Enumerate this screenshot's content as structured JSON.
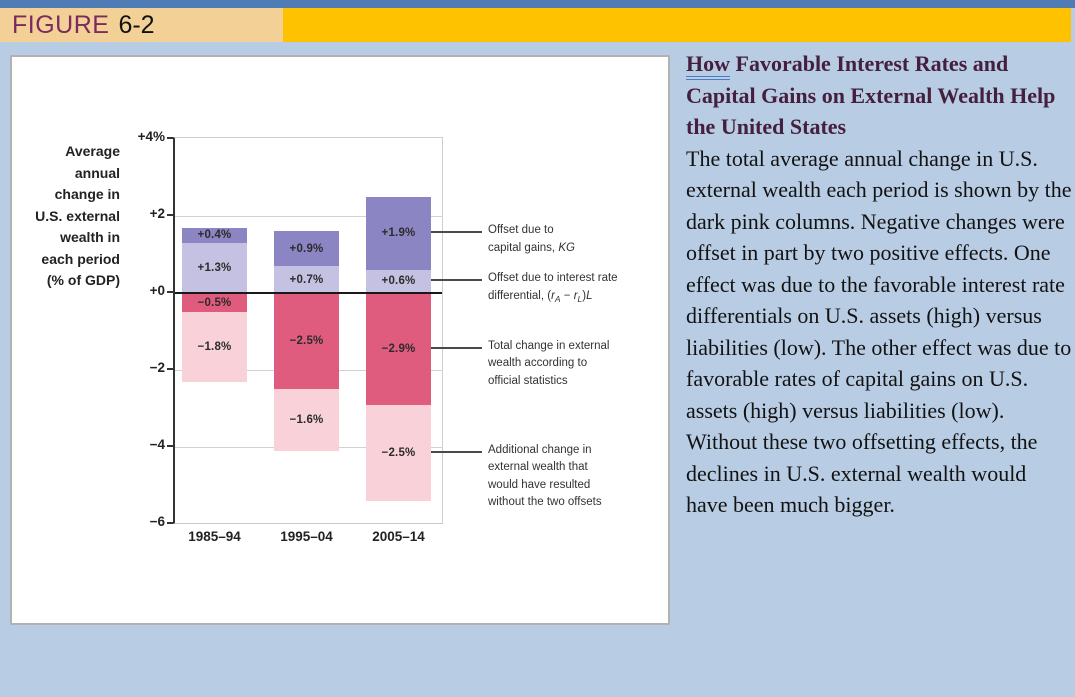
{
  "header": {
    "label": "FIGURE",
    "number": "6-2"
  },
  "colors": {
    "page_bg": "#b8cce4",
    "top_strip": "#4f7cb5",
    "band_tan": "#f2d096",
    "band_gold": "#ffc200",
    "figure_label_text": "#7c2b5e",
    "panel_border": "#b2b2b2",
    "caption_heading": "#44203e",
    "grid_line": "#d2d2d2",
    "zero_line": "#191919"
  },
  "chart_data": {
    "type": "bar",
    "stacked": true,
    "grid": true,
    "ylim": [
      -6,
      4
    ],
    "ylabel_lines": [
      "Average",
      "annual",
      "change in",
      "U.S. external",
      "wealth in",
      "each period",
      "(% of GDP)"
    ],
    "y_ticks": [
      {
        "label": "+4%",
        "value": 4
      },
      {
        "label": "+2",
        "value": 2
      },
      {
        "label": "+0",
        "value": 0
      },
      {
        "label": "−2",
        "value": -2
      },
      {
        "label": "−4",
        "value": -4
      },
      {
        "label": "−6",
        "value": -6
      }
    ],
    "categories": [
      "1985–94",
      "1995–04",
      "2005–14"
    ],
    "palette": {
      "capital_gains": "#8c85c4",
      "interest_diff": "#c5c1e2",
      "total_change": "#e05c7e",
      "additional": "#f8d2d8"
    },
    "series_legend": [
      {
        "key": "capital_gains",
        "name": "Offset due to capital gains, KG"
      },
      {
        "key": "interest_diff",
        "name": "Offset due to interest rate differential, (rA − rL)L"
      },
      {
        "key": "total_change",
        "name": "Total change in external wealth according to official statistics"
      },
      {
        "key": "additional",
        "name": "Additional change in external wealth that would have resulted without the two offsets"
      }
    ],
    "bars": [
      {
        "category": "1985–94",
        "segments": [
          {
            "key": "capital_gains",
            "value": 0.4,
            "label": "+0.4%"
          },
          {
            "key": "interest_diff",
            "value": 1.3,
            "label": "+1.3%"
          },
          {
            "key": "total_change",
            "value": -0.5,
            "label": "−0.5%"
          },
          {
            "key": "additional",
            "value": -1.8,
            "label": "−1.8%"
          }
        ]
      },
      {
        "category": "1995–04",
        "segments": [
          {
            "key": "capital_gains",
            "value": 0.9,
            "label": "+0.9%"
          },
          {
            "key": "interest_diff",
            "value": 0.7,
            "label": "+0.7%"
          },
          {
            "key": "total_change",
            "value": -2.5,
            "label": "−2.5%"
          },
          {
            "key": "additional",
            "value": -1.6,
            "label": "−1.6%"
          }
        ]
      },
      {
        "category": "2005–14",
        "segments": [
          {
            "key": "capital_gains",
            "value": 1.9,
            "label": "+1.9%"
          },
          {
            "key": "interest_diff",
            "value": 0.6,
            "label": "+0.6%"
          },
          {
            "key": "total_change",
            "value": -2.9,
            "label": "−2.9%"
          },
          {
            "key": "additional",
            "value": -2.5,
            "label": "−2.5%"
          }
        ]
      }
    ],
    "annotations": [
      {
        "at": 1.55,
        "lines": [
          [
            {
              "t": "Offset due to"
            }
          ],
          [
            {
              "t": "capital gains, "
            },
            {
              "t": "KG",
              "i": true
            }
          ]
        ]
      },
      {
        "at": 0.3,
        "lines": [
          [
            {
              "t": "Offset due to interest rate"
            }
          ],
          [
            {
              "t": "differential, ("
            },
            {
              "t": "r",
              "i": true
            },
            {
              "t": "A",
              "i": true,
              "sub": true
            },
            {
              "t": " − "
            },
            {
              "t": "r",
              "i": true
            },
            {
              "t": "L",
              "i": true,
              "sub": true
            },
            {
              "t": ")"
            },
            {
              "t": "L",
              "i": true
            }
          ]
        ]
      },
      {
        "at": -1.45,
        "lines": [
          [
            {
              "t": "Total change in external"
            }
          ],
          [
            {
              "t": "wealth according to"
            }
          ],
          [
            {
              "t": "official statistics"
            }
          ]
        ]
      },
      {
        "at": -4.15,
        "lines": [
          [
            {
              "t": "Additional change in"
            }
          ],
          [
            {
              "t": "external wealth that"
            }
          ],
          [
            {
              "t": "would have resulted"
            }
          ],
          [
            {
              "t": "without the two offsets"
            }
          ]
        ]
      }
    ]
  },
  "caption": {
    "heading_underlined": "How",
    "heading_rest": " Favorable Interest Rates and Capital Gains on External Wealth Help the United States",
    "body": "The total average annual change in U.S. external wealth each period is shown by the dark pink columns. Negative changes were offset in part by two positive effects. One effect was due to the favorable interest rate differentials on U.S. assets (high) versus liabilities (low). The other effect was due to favorable rates of capital gains on U.S. assets (high) versus liabilities (low). Without these two offsetting effects, the declines in U.S. external wealth would have been much bigger."
  }
}
